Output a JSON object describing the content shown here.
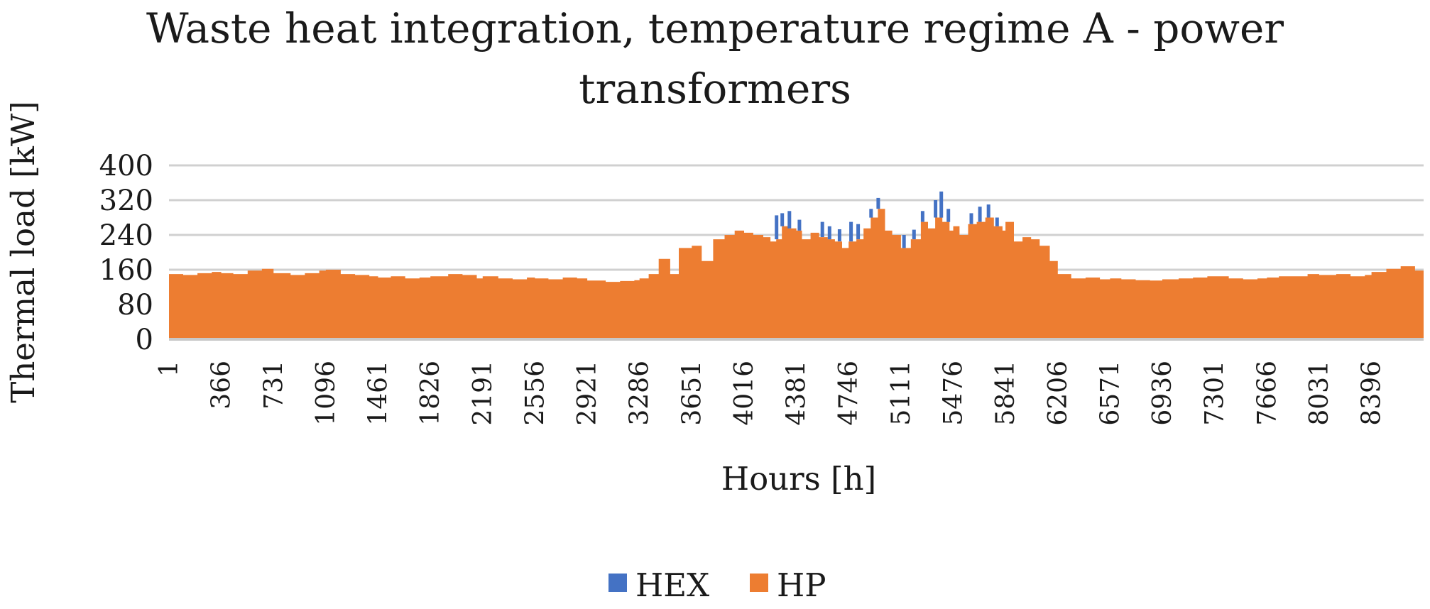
{
  "chart_data": {
    "type": "bar",
    "stacked": true,
    "title_lines": [
      "Waste heat integration, temperature regime A - power",
      "transformers"
    ],
    "xlabel": "Hours [h]",
    "ylabel": "Thermal load [kW]",
    "ylim": [
      0,
      400
    ],
    "yticks": [
      "0",
      "80",
      "160",
      "240",
      "320",
      "400"
    ],
    "xlim": [
      1,
      8760
    ],
    "xticks": [
      "1",
      "366",
      "731",
      "1096",
      "1461",
      "1826",
      "2191",
      "2556",
      "2921",
      "3286",
      "3651",
      "4016",
      "4381",
      "4746",
      "5111",
      "5476",
      "5841",
      "6206",
      "6571",
      "6936",
      "7301",
      "7666",
      "8031",
      "8396"
    ],
    "grid": "horizontal",
    "legend_position": "bottom",
    "colors": {
      "HEX": "#4472c4",
      "HP": "#ed7d31"
    },
    "series": [
      {
        "name": "HEX",
        "x": [
          4240,
          4280,
          4330,
          4400,
          4560,
          4610,
          4680,
          4760,
          4810,
          4900,
          4950,
          5130,
          5200,
          5260,
          5350,
          5390,
          5440,
          5600,
          5660,
          5720,
          5780
        ],
        "values": [
          55,
          30,
          40,
          25,
          35,
          30,
          28,
          45,
          35,
          20,
          25,
          30,
          22,
          25,
          40,
          60,
          30,
          25,
          35,
          30,
          20
        ]
      },
      {
        "name": "HP",
        "x": [
          1,
          100,
          200,
          300,
          366,
          450,
          550,
          650,
          731,
          850,
          950,
          1050,
          1096,
          1200,
          1300,
          1400,
          1461,
          1550,
          1650,
          1750,
          1826,
          1950,
          2050,
          2150,
          2191,
          2300,
          2400,
          2500,
          2556,
          2650,
          2750,
          2850,
          2921,
          3050,
          3150,
          3250,
          3286,
          3350,
          3420,
          3500,
          3560,
          3651,
          3720,
          3800,
          3880,
          3950,
          4016,
          4080,
          4150,
          4200,
          4240,
          4280,
          4330,
          4381,
          4420,
          4480,
          4540,
          4600,
          4650,
          4700,
          4746,
          4800,
          4850,
          4900,
          4950,
          5000,
          5050,
          5111,
          5180,
          5250,
          5300,
          5350,
          5400,
          5450,
          5476,
          5520,
          5580,
          5640,
          5700,
          5760,
          5820,
          5841,
          5900,
          5960,
          6020,
          6080,
          6150,
          6206,
          6300,
          6400,
          6500,
          6571,
          6650,
          6750,
          6850,
          6936,
          7050,
          7150,
          7250,
          7301,
          7400,
          7500,
          7600,
          7666,
          7750,
          7850,
          7950,
          8031,
          8150,
          8250,
          8350,
          8396,
          8500,
          8600,
          8700,
          8760
        ],
        "values": [
          150,
          148,
          152,
          155,
          152,
          150,
          158,
          162,
          152,
          148,
          152,
          158,
          160,
          150,
          148,
          145,
          142,
          145,
          140,
          142,
          145,
          150,
          148,
          140,
          145,
          140,
          138,
          142,
          140,
          138,
          142,
          140,
          135,
          132,
          134,
          136,
          140,
          150,
          185,
          150,
          210,
          215,
          180,
          230,
          240,
          250,
          245,
          240,
          235,
          225,
          230,
          260,
          255,
          250,
          230,
          245,
          235,
          230,
          225,
          210,
          225,
          230,
          255,
          280,
          300,
          250,
          240,
          210,
          230,
          270,
          255,
          280,
          270,
          250,
          260,
          240,
          265,
          270,
          280,
          260,
          250,
          270,
          225,
          235,
          230,
          215,
          180,
          150,
          140,
          142,
          138,
          140,
          138,
          136,
          135,
          138,
          140,
          142,
          145,
          145,
          140,
          138,
          140,
          142,
          145,
          145,
          150,
          148,
          150,
          145,
          148,
          155,
          162,
          168,
          158,
          150
        ]
      }
    ]
  },
  "legend": {
    "items": [
      {
        "label": "HEX",
        "color": "#4472c4"
      },
      {
        "label": "HP",
        "color": "#ed7d31"
      }
    ]
  }
}
